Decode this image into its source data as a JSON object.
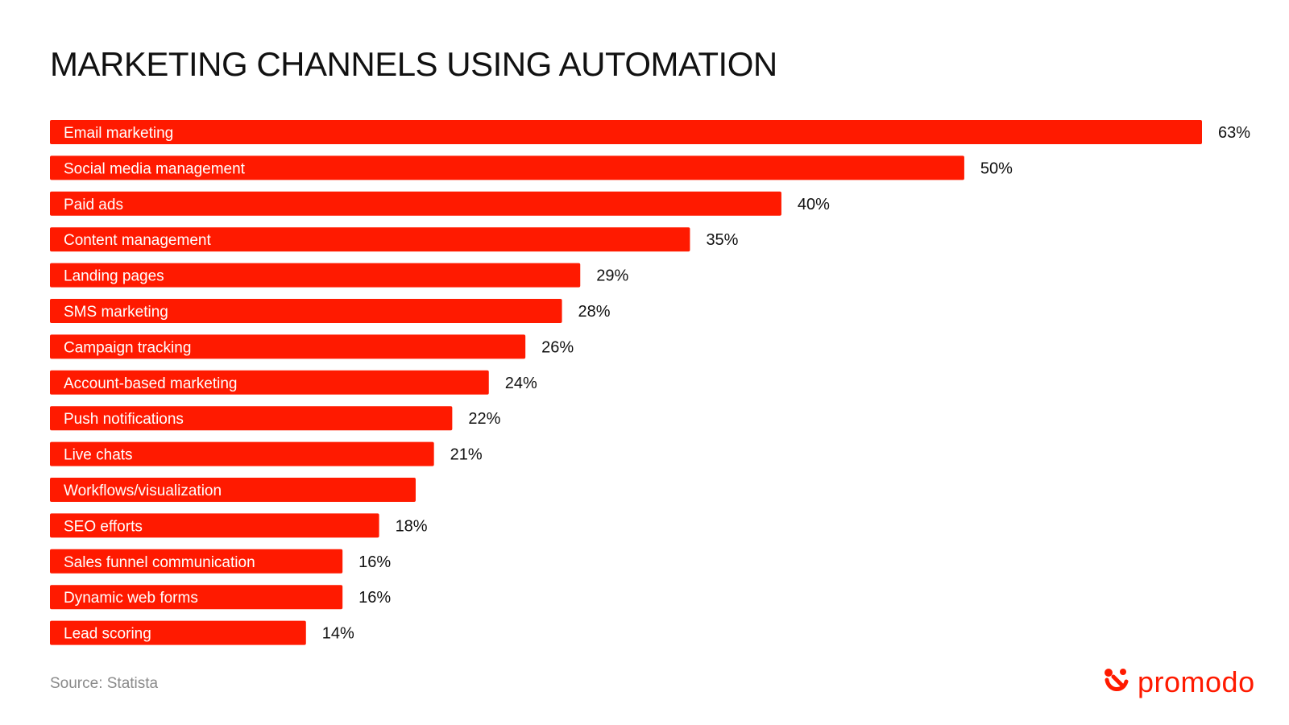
{
  "chart_data": {
    "type": "bar",
    "orientation": "horizontal",
    "title": "MARKETING CHANNELS USING AUTOMATION",
    "categories": [
      "Email marketing",
      "Social media management",
      "Paid ads",
      "Content management",
      "Landing pages",
      "SMS marketing",
      "Campaign tracking",
      "Account-based marketing",
      "Push notifications",
      "Live chats",
      "Workflows/visualization",
      "SEO efforts",
      "Sales funnel communication",
      "Dynamic web forms",
      "Lead scoring"
    ],
    "values": [
      63,
      50,
      40,
      35,
      29,
      28,
      26,
      24,
      22,
      21,
      20,
      18,
      16,
      16,
      14
    ],
    "value_labels": [
      "63%",
      "50%",
      "40%",
      "35%",
      "29%",
      "28%",
      "26%",
      "24%",
      "22%",
      "21%",
      "",
      "18%",
      "16%",
      "16%",
      "14%"
    ],
    "xlabel": "",
    "ylabel": "",
    "xlim": [
      0,
      63
    ],
    "grid": false,
    "legend": "none",
    "bar_color": "#ff1a00",
    "label_color": "#ffffff"
  },
  "footer": {
    "source": "Source: Statista",
    "brand": "promodo",
    "brand_color": "#ff1a00"
  },
  "icons": {
    "brand_mark": "promodo-logo-icon"
  }
}
